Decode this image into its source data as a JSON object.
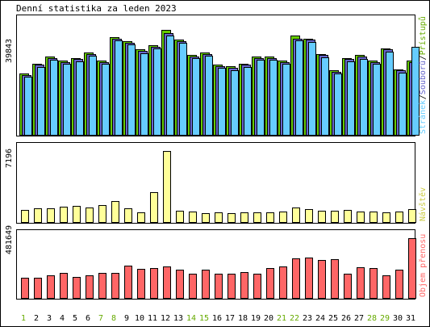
{
  "title": "Denní statistika za leden 2023",
  "colors": {
    "hits": "#66cc00",
    "files": "#6666cc",
    "pages": "#66ccff",
    "visits": "#ffff99",
    "kbytes": "#ff6666",
    "weekend_label": "#66aa00",
    "weekday_label": "#000000",
    "legend_hits": "#66aa00",
    "legend_files": "#6666cc",
    "legend_pages": "#66ccff",
    "legend_visits": "#cccc44",
    "legend_kbytes": "#ff6666"
  },
  "chart_data": [
    {
      "type": "bar",
      "title": "Denní statistika za leden 2023",
      "categories": [
        "1",
        "2",
        "3",
        "4",
        "5",
        "6",
        "7",
        "8",
        "9",
        "10",
        "11",
        "12",
        "13",
        "14",
        "15",
        "16",
        "17",
        "18",
        "19",
        "20",
        "21",
        "22",
        "23",
        "24",
        "25",
        "26",
        "27",
        "28",
        "29",
        "30",
        "31"
      ],
      "weekend_days": [
        "1",
        "7",
        "8",
        "14",
        "15",
        "21",
        "22",
        "28",
        "29"
      ],
      "ymax_label": "39843",
      "ylim": [
        0,
        39843
      ],
      "series": [
        {
          "name": "Přístupů",
          "values": [
            22000,
            25500,
            28000,
            26500,
            27500,
            29500,
            26500,
            35000,
            33500,
            30500,
            32000,
            37500,
            34000,
            28500,
            29500,
            25000,
            24500,
            25500,
            28000,
            28000,
            26500,
            35500,
            34500,
            29000,
            23000,
            27500,
            28500,
            26500,
            31000,
            23500,
            26500
          ]
        },
        {
          "name": "Souborů",
          "values": [
            21500,
            25000,
            27500,
            26000,
            27000,
            29000,
            26000,
            34500,
            33000,
            30000,
            31500,
            36500,
            33500,
            28000,
            29000,
            24500,
            24000,
            25000,
            27500,
            27500,
            26000,
            34500,
            34000,
            28500,
            22500,
            27000,
            28000,
            26000,
            30500,
            23000,
            26000
          ]
        },
        {
          "name": "Stránek",
          "values": [
            20800,
            24300,
            26800,
            25300,
            26200,
            28200,
            25500,
            33800,
            32200,
            29200,
            30800,
            35500,
            32800,
            27300,
            28200,
            24000,
            23200,
            24300,
            26800,
            26800,
            25300,
            33800,
            33200,
            27800,
            22000,
            26200,
            27200,
            25300,
            29800,
            22200,
            31500
          ]
        }
      ],
      "legend_position": "right"
    },
    {
      "type": "bar",
      "categories": [
        "1",
        "2",
        "3",
        "4",
        "5",
        "6",
        "7",
        "8",
        "9",
        "10",
        "11",
        "12",
        "13",
        "14",
        "15",
        "16",
        "17",
        "18",
        "19",
        "20",
        "21",
        "22",
        "23",
        "24",
        "25",
        "26",
        "27",
        "28",
        "29",
        "30",
        "31"
      ],
      "ymax_label": "7196",
      "ylim": [
        0,
        7196
      ],
      "series": [
        {
          "name": "Návštěv",
          "values": [
            1200,
            1400,
            1400,
            1550,
            1600,
            1500,
            1750,
            2100,
            1350,
            1000,
            3000,
            7196,
            1150,
            1050,
            900,
            950,
            900,
            1000,
            950,
            950,
            1050,
            1450,
            1300,
            1150,
            1150,
            1200,
            1100,
            1050,
            950,
            1100,
            1300
          ]
        }
      ],
      "legend_position": "right"
    },
    {
      "type": "bar",
      "categories": [
        "1",
        "2",
        "3",
        "4",
        "5",
        "6",
        "7",
        "8",
        "9",
        "10",
        "11",
        "12",
        "13",
        "14",
        "15",
        "16",
        "17",
        "18",
        "19",
        "20",
        "21",
        "22",
        "23",
        "24",
        "25",
        "26",
        "27",
        "28",
        "29",
        "30",
        "31"
      ],
      "ymax_label": "481649",
      "ylim": [
        0,
        481649
      ],
      "series": [
        {
          "name": "Objem přenosu",
          "values": [
            160000,
            165000,
            180000,
            200000,
            170000,
            180000,
            200000,
            205000,
            260000,
            235000,
            240000,
            255000,
            230000,
            195000,
            225000,
            195000,
            195000,
            210000,
            195000,
            240000,
            255000,
            320000,
            325000,
            305000,
            315000,
            195000,
            250000,
            240000,
            180000,
            225000,
            481649
          ]
        }
      ],
      "legend_position": "right"
    }
  ]
}
